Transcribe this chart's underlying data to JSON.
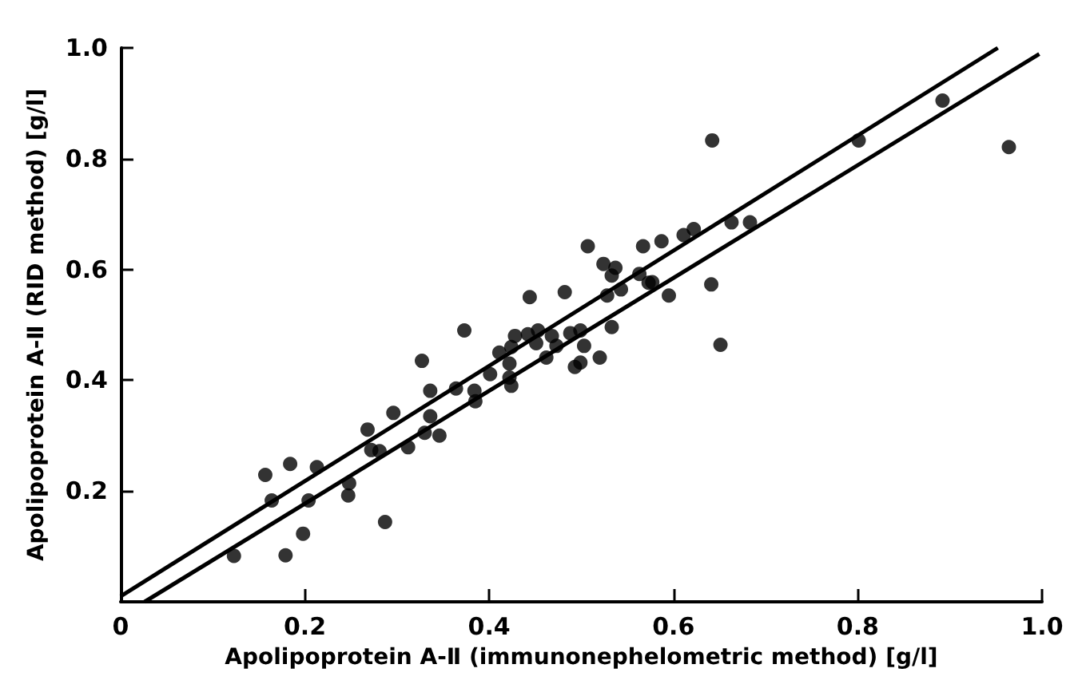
{
  "chart_data": {
    "type": "scatter",
    "xlabel": "Apolipoprotein A-Ⅱ (immunonephelometric method) [g/l]",
    "ylabel": "Apolipoprotein A-Ⅱ (RID method) [g/l]",
    "xlim": [
      0,
      1
    ],
    "ylim": [
      0,
      1
    ],
    "xticks": [
      0,
      {
        "value": 0.2,
        "label": "0.2"
      },
      {
        "value": 0.4,
        "label": "0.4"
      },
      {
        "value": 0.6,
        "label": "0.6"
      },
      {
        "value": 0.8,
        "label": "0.8"
      },
      {
        "value": 1,
        "label": "1.0"
      }
    ],
    "yticks": [
      {
        "value": 0.2,
        "label": "0.2"
      },
      {
        "value": 0.4,
        "label": "0.4"
      },
      {
        "value": 0.6,
        "label": "0.6"
      },
      {
        "value": 0.8,
        "label": "0.8"
      },
      {
        "value": 1,
        "label": "1.0"
      }
    ],
    "grid": false,
    "marker": "circle",
    "series": [
      {
        "color": "#000000",
        "x": [
          0.123,
          0.157,
          0.164,
          0.184,
          0.179,
          0.198,
          0.204,
          0.213,
          0.248,
          0.247,
          0.268,
          0.272,
          0.281,
          0.287,
          0.296,
          0.312,
          0.327,
          0.33,
          0.336,
          0.346,
          0.336,
          0.364,
          0.373,
          0.385,
          0.384,
          0.401,
          0.411,
          0.422,
          0.424,
          0.422,
          0.428,
          0.444,
          0.442,
          0.424,
          0.453,
          0.451,
          0.462,
          0.468,
          0.473,
          0.482,
          0.488,
          0.499,
          0.503,
          0.493,
          0.499,
          0.507,
          0.52,
          0.524,
          0.533,
          0.537,
          0.533,
          0.528,
          0.543,
          0.563,
          0.567,
          0.573,
          0.577,
          0.587,
          0.595,
          0.611,
          0.622,
          0.642,
          0.641,
          0.651,
          0.663,
          0.683,
          0.801,
          0.892,
          0.964
        ],
        "values": [
          0.083,
          0.229,
          0.183,
          0.249,
          0.084,
          0.123,
          0.183,
          0.243,
          0.214,
          0.192,
          0.311,
          0.274,
          0.272,
          0.144,
          0.341,
          0.279,
          0.435,
          0.305,
          0.381,
          0.3,
          0.335,
          0.385,
          0.49,
          0.362,
          0.381,
          0.411,
          0.45,
          0.43,
          0.39,
          0.405,
          0.48,
          0.55,
          0.483,
          0.46,
          0.49,
          0.467,
          0.441,
          0.48,
          0.462,
          0.559,
          0.485,
          0.49,
          0.462,
          0.424,
          0.432,
          0.642,
          0.441,
          0.61,
          0.496,
          0.603,
          0.589,
          0.553,
          0.564,
          0.592,
          0.642,
          0.576,
          0.577,
          0.651,
          0.553,
          0.662,
          0.673,
          0.833,
          0.573,
          0.464,
          0.685,
          0.685,
          0.833,
          0.905,
          0.821
        ]
      },
      {
        "type": "line",
        "marker": "none",
        "color": "#000000",
        "x": [
          0,
          0.952
        ],
        "values": [
          0.01,
          1
        ]
      },
      {
        "type": "line",
        "marker": "none",
        "color": "#000000",
        "x": [
          0.026,
          0.997
        ],
        "values": [
          0,
          0.989
        ]
      }
    ]
  }
}
